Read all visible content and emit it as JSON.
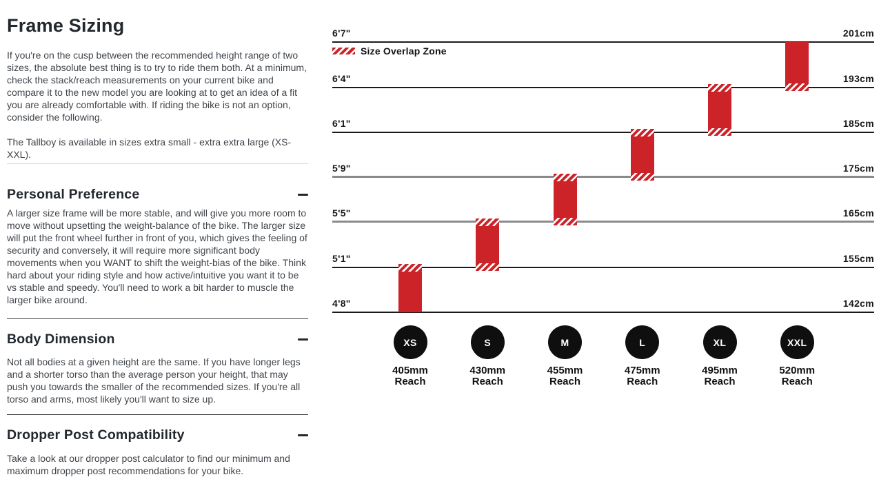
{
  "left_panel": {
    "title": "Frame Sizing",
    "intro": "If you're on the cusp between the recommended height range of two sizes, the absolute best thing is to try to ride them both. At a minimum, check the stack/reach measurements on your current bike and compare it to the new model you are looking at to get an idea of a fit you are already comfortable with. If riding the bike is not an option, consider the following.",
    "intro2": "The Tallboy is available in sizes extra small - extra extra large (XS-XXL).",
    "sections": [
      {
        "heading": "Personal Preference",
        "toggle_icon": "minus",
        "body": "A larger size frame will be more stable, and will give you more room to move without upsetting the weight-balance of the bike. The larger size will put the front wheel further in front of you, which gives the feeling of security and conversely, it will require more significant body movements when you WANT to shift the weight-bias of the bike. Think hard about your riding style and how active/intuitive you want it to be vs stable and speedy. You'll need to work a bit harder to muscle the larger bike around."
      },
      {
        "heading": "Body Dimension",
        "toggle_icon": "minus",
        "body": "Not all bodies at a given height are the same. If you have longer legs and a shorter torso than the average person your height, that may push you towards the smaller of the recommended sizes. If you're all torso and arms, most likely you'll want to size up."
      },
      {
        "heading": "Dropper Post Compatibility",
        "toggle_icon": "minus",
        "body": "Take a look at our dropper post calculator to find our minimum and maximum dropper post recommendations for your bike."
      }
    ]
  },
  "chart_data": {
    "type": "bar",
    "subtype": "vertical-range-columns-with-overlap-zones",
    "legend_label": "Size Overlap Zone",
    "height_lines": [
      {
        "ft": "6'7\"",
        "cm": "201cm",
        "cm_value": 201,
        "muted": false
      },
      {
        "ft": "6'4\"",
        "cm": "193cm",
        "cm_value": 193,
        "muted": false
      },
      {
        "ft": "6'1\"",
        "cm": "185cm",
        "cm_value": 185,
        "muted": false
      },
      {
        "ft": "5'9\"",
        "cm": "175cm",
        "cm_value": 175,
        "muted": true
      },
      {
        "ft": "5'5\"",
        "cm": "165cm",
        "cm_value": 165,
        "muted": true
      },
      {
        "ft": "5'1\"",
        "cm": "155cm",
        "cm_value": 155,
        "muted": false
      },
      {
        "ft": "4'8\"",
        "cm": "142cm",
        "cm_value": 142,
        "muted": false
      }
    ],
    "sizes": [
      {
        "label": "XS",
        "reach": "405mm",
        "height_range_ft": [
          "4'8\"",
          "5'1\""
        ],
        "height_range_cm": [
          142,
          155
        ],
        "overlap_top": true,
        "overlap_bottom": false
      },
      {
        "label": "S",
        "reach": "430mm",
        "height_range_ft": [
          "5'1\"",
          "5'5\""
        ],
        "height_range_cm": [
          155,
          165
        ],
        "overlap_top": true,
        "overlap_bottom": true
      },
      {
        "label": "M",
        "reach": "455mm",
        "height_range_ft": [
          "5'5\"",
          "5'9\""
        ],
        "height_range_cm": [
          165,
          175
        ],
        "overlap_top": true,
        "overlap_bottom": true
      },
      {
        "label": "L",
        "reach": "475mm",
        "height_range_ft": [
          "5'9\"",
          "6'1\""
        ],
        "height_range_cm": [
          175,
          185
        ],
        "overlap_top": true,
        "overlap_bottom": true
      },
      {
        "label": "XL",
        "reach": "495mm",
        "height_range_ft": [
          "6'1\"",
          "6'4\""
        ],
        "height_range_cm": [
          185,
          193
        ],
        "overlap_top": true,
        "overlap_bottom": true
      },
      {
        "label": "XXL",
        "reach": "520mm",
        "height_range_ft": [
          "6'4\"",
          "6'7\""
        ],
        "height_range_cm": [
          193,
          201
        ],
        "overlap_top": false,
        "overlap_bottom": true
      }
    ],
    "reach_word": "Reach",
    "colors": {
      "bar_red": "#cc2329",
      "hatch_white": "#ffffff",
      "line_dark": "#1a1a1a",
      "line_gray": "#8a8a8a",
      "circle_black": "#0f0f0f"
    }
  }
}
